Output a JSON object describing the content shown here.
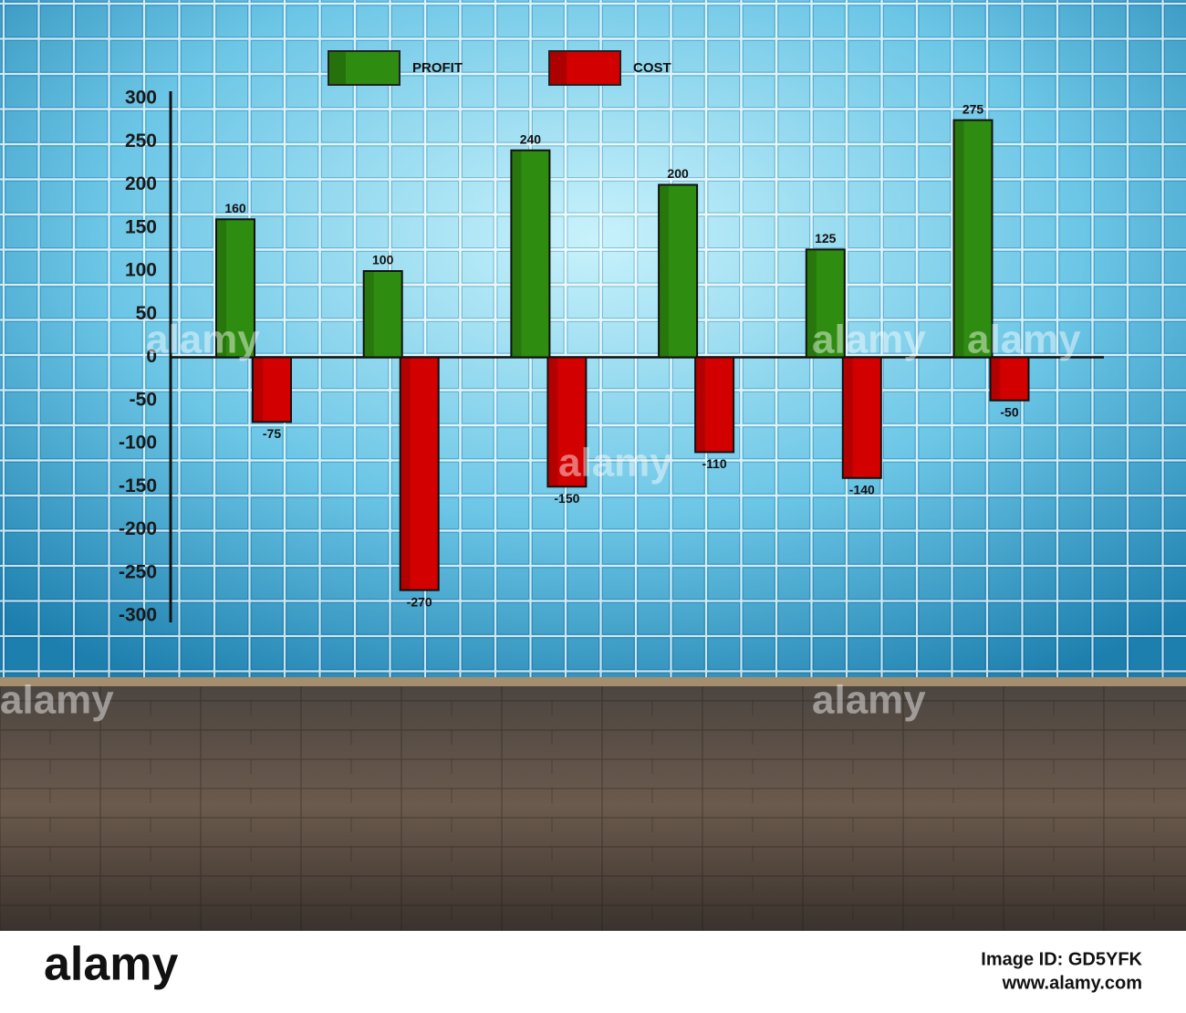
{
  "chart_data": {
    "type": "bar",
    "categories": [
      null,
      null,
      null,
      null,
      null,
      null
    ],
    "series": [
      {
        "name": "PROFIT",
        "color": "#2e8c10",
        "values": [
          160,
          100,
          240,
          200,
          125,
          275
        ]
      },
      {
        "name": "COST",
        "color": "#d30000",
        "values": [
          -75,
          -270,
          -150,
          -110,
          -140,
          -50
        ]
      }
    ],
    "ylim": [
      -300,
      300
    ],
    "yticks": [
      300,
      250,
      200,
      150,
      100,
      50,
      0,
      -50,
      -100,
      -150,
      -200,
      -250,
      -300
    ]
  },
  "watermark": {
    "brand": "alamy",
    "image_id": "Image ID: GD5YFK",
    "url": "www.alamy.com"
  }
}
